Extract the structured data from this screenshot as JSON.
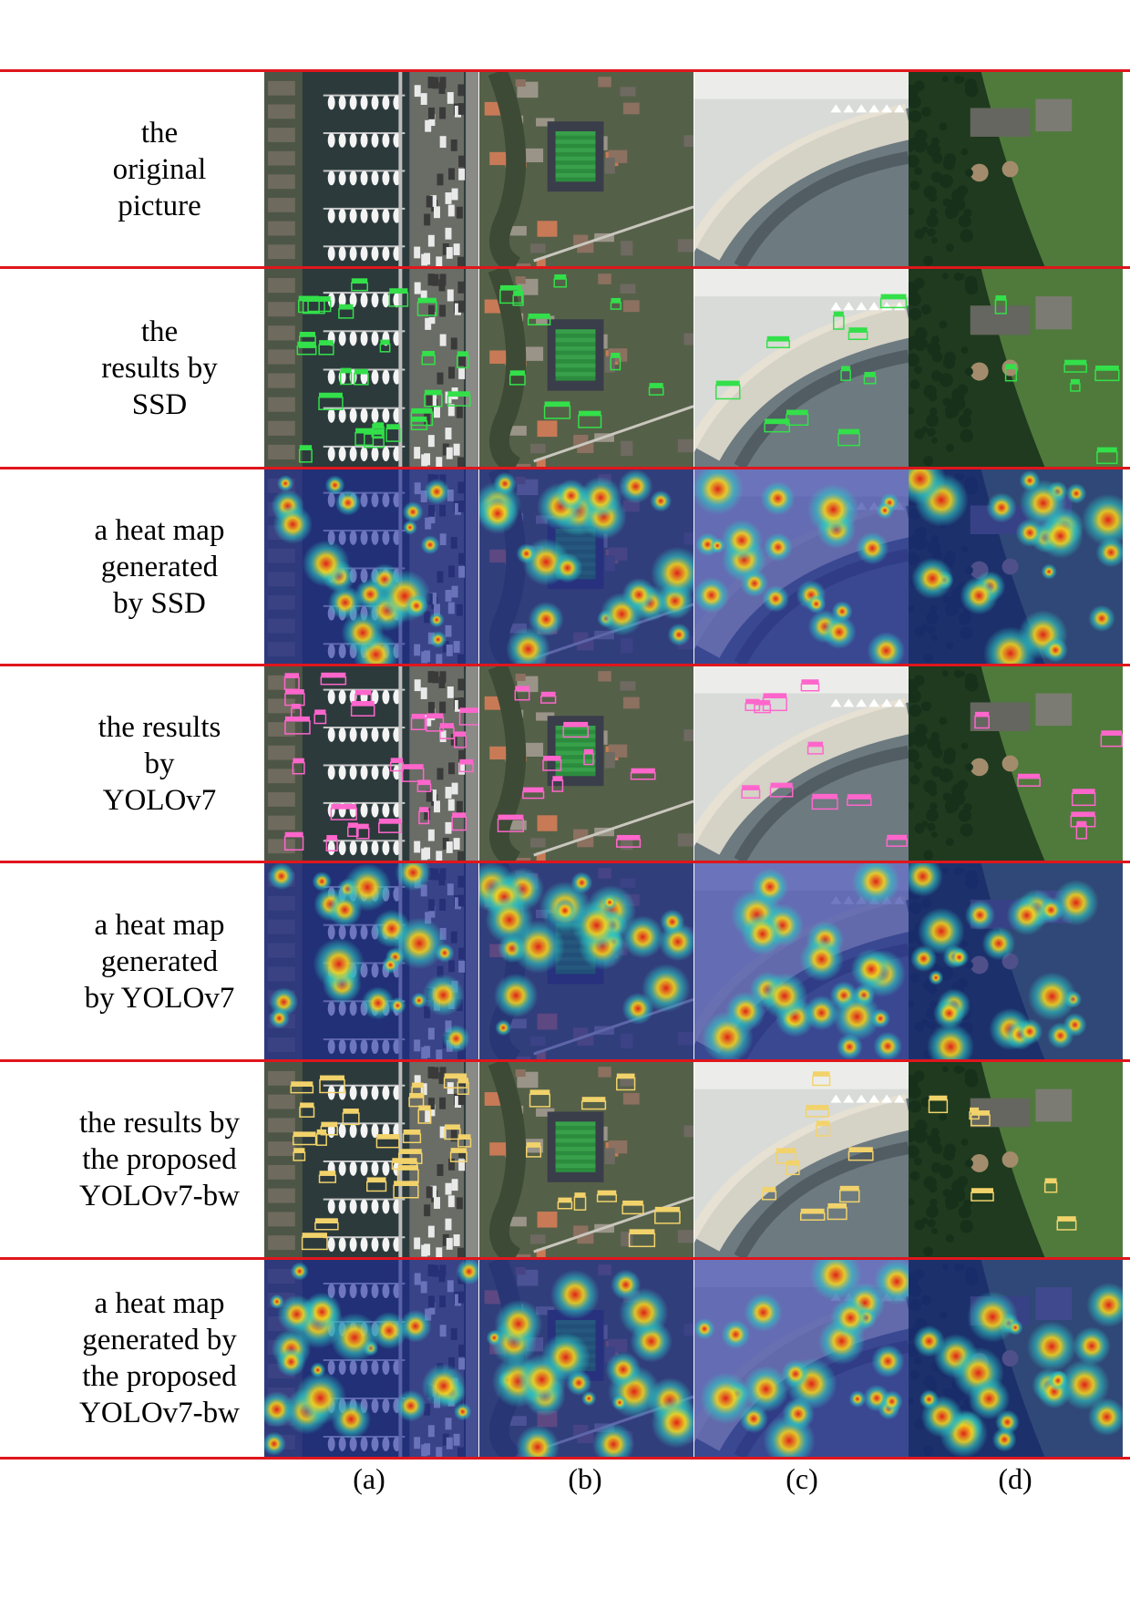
{
  "rows": [
    {
      "label": "the\noriginal\npicture",
      "kind": "image"
    },
    {
      "label": "the\nresults by\nSSD",
      "kind": "detect"
    },
    {
      "label": "a heat map\ngenerated\nby SSD",
      "kind": "heat"
    },
    {
      "label": "the results\nby\nYOLOv7",
      "kind": "detect"
    },
    {
      "label": "a heat map\ngenerated\nby YOLOv7",
      "kind": "heat"
    },
    {
      "label": "the results by\nthe proposed\nYOLOv7-bw",
      "kind": "detect"
    },
    {
      "label": "a heat map\ngenerated by\nthe proposed\nYOLOv7-bw",
      "kind": "heat"
    }
  ],
  "columns": [
    "(a)",
    "(b)",
    "(c)",
    "(d)"
  ],
  "colors": {
    "separator": "#e0161c",
    "ssd_box": "#33e04a",
    "yolov7_box": "#ff66cc",
    "yolov7bw_box": "#f2d36b",
    "heat_low": "#1c2a9c",
    "heat_high": "#e0201a"
  }
}
